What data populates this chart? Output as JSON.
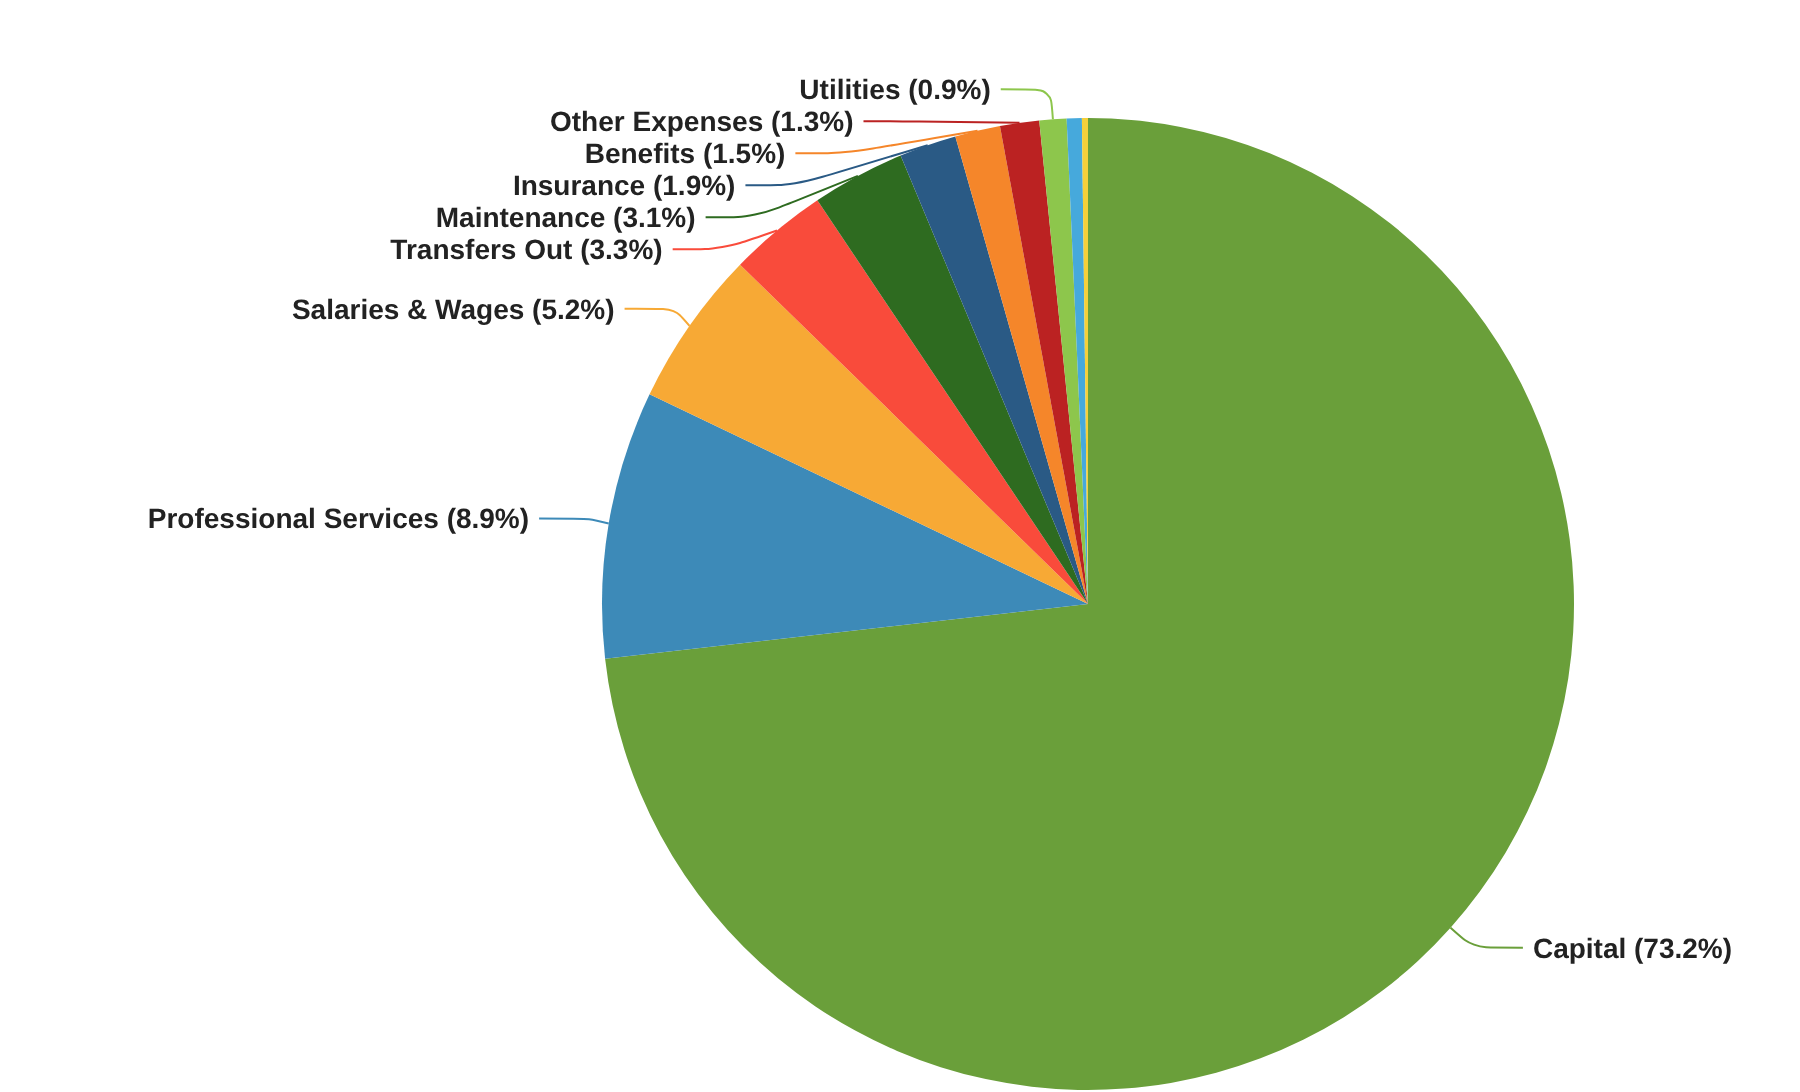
{
  "chart_data": {
    "type": "pie",
    "categories": [
      "Capital",
      "Professional Services",
      "Salaries & Wages",
      "Transfers Out",
      "Maintenance",
      "Insurance",
      "Benefits",
      "Other Expenses",
      "Utilities",
      null,
      null
    ],
    "values": [
      73.2,
      8.9,
      5.2,
      3.3,
      3.1,
      1.9,
      1.5,
      1.3,
      0.9,
      0.5,
      0.2
    ],
    "value_labels": [
      "(73.2%)",
      "(8.9%)",
      "(5.2%)",
      "(3.3%)",
      "(3.1%)",
      "(1.9%)",
      "(1.5%)",
      "(1.3%)",
      "(0.9%)",
      null,
      null
    ],
    "colors": [
      "#6a9f3a",
      "#3d8ab8",
      "#f7a935",
      "#f94b3b",
      "#2e6b20",
      "#2a5a85",
      "#f5862a",
      "#bb2222",
      "#8dc64c",
      "#46a9dc",
      "#f5d03a"
    ],
    "legend": false
  }
}
